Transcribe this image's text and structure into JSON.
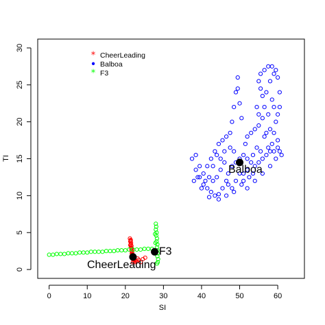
{
  "chart_data": {
    "type": "scatter",
    "xlabel": "SI",
    "ylabel": "TI",
    "xlim": [
      -3,
      67
    ],
    "ylim": [
      -1.2,
      31.2
    ],
    "x_ticks": [
      0,
      10,
      20,
      30,
      40,
      50,
      60
    ],
    "y_ticks": [
      0,
      5,
      10,
      15,
      20,
      25,
      30
    ],
    "grid": false,
    "legend_position": "top-left",
    "legend": [
      {
        "label": "CheerLeading",
        "color": "#FF0000",
        "symbol": "*"
      },
      {
        "label": "Balboa",
        "color": "#0000FF",
        "symbol": "•"
      },
      {
        "label": "F3",
        "color": "#00FF00",
        "symbol": "*"
      }
    ],
    "series": [
      {
        "name": "CheerLeading",
        "color": "#FF0000",
        "marker": "open-circle",
        "points": [
          [
            21.2,
            4.2
          ],
          [
            21.4,
            4.0
          ],
          [
            21.3,
            3.8
          ],
          [
            21.5,
            3.6
          ],
          [
            21.4,
            3.4
          ],
          [
            21.6,
            3.2
          ],
          [
            21.5,
            3.0
          ],
          [
            21.7,
            2.8
          ],
          [
            21.6,
            2.6
          ],
          [
            21.8,
            2.4
          ],
          [
            21.7,
            2.2
          ],
          [
            21.9,
            2.0
          ],
          [
            22.0,
            1.8
          ],
          [
            22.2,
            1.6
          ],
          [
            22.1,
            1.4
          ],
          [
            22.3,
            1.2
          ],
          [
            22.5,
            1.0
          ],
          [
            22.7,
            1.2
          ],
          [
            23.0,
            1.1
          ],
          [
            23.5,
            1.3
          ],
          [
            24.0,
            1.0
          ],
          [
            24.6,
            1.4
          ],
          [
            25.2,
            1.6
          ],
          [
            21.4,
            3.9
          ],
          [
            21.3,
            3.3
          ],
          [
            21.6,
            2.9
          ],
          [
            21.8,
            2.1
          ],
          [
            22.4,
            1.5
          ],
          [
            22.0,
            1.0
          ],
          [
            23.2,
            1.5
          ]
        ],
        "centroid": [
          22.0,
          1.7
        ]
      },
      {
        "name": "Balboa",
        "color": "#0000FF",
        "marker": "open-circle",
        "points": [
          [
            37.5,
            15.0
          ],
          [
            38.5,
            13.5
          ],
          [
            39.5,
            12.5
          ],
          [
            40.5,
            11.5
          ],
          [
            41.5,
            11.0
          ],
          [
            42.5,
            10.5
          ],
          [
            43.5,
            10.0
          ],
          [
            44.5,
            10.2
          ],
          [
            45.5,
            11.0
          ],
          [
            46.5,
            12.0
          ],
          [
            47.0,
            13.0
          ],
          [
            48.0,
            14.0
          ],
          [
            49.0,
            14.5
          ],
          [
            50.0,
            15.0
          ],
          [
            51.0,
            15.5
          ],
          [
            52.0,
            15.0
          ],
          [
            53.0,
            14.5
          ],
          [
            54.0,
            14.0
          ],
          [
            55.0,
            14.5
          ],
          [
            56.0,
            15.0
          ],
          [
            57.0,
            15.5
          ],
          [
            58.0,
            16.0
          ],
          [
            59.0,
            16.0
          ],
          [
            60.0,
            16.5
          ],
          [
            60.5,
            16.0
          ],
          [
            60.0,
            17.5
          ],
          [
            59.0,
            18.5
          ],
          [
            58.0,
            19.0
          ],
          [
            57.0,
            18.5
          ],
          [
            56.5,
            18.0
          ],
          [
            59.5,
            20.0
          ],
          [
            60.0,
            21.0
          ],
          [
            60.5,
            22.0
          ],
          [
            60.5,
            24.0
          ],
          [
            60.0,
            26.0
          ],
          [
            59.5,
            27.0
          ],
          [
            58.5,
            27.5
          ],
          [
            57.5,
            27.5
          ],
          [
            56.5,
            27.0
          ],
          [
            55.5,
            26.5
          ],
          [
            55.0,
            25.5
          ],
          [
            55.5,
            24.5
          ],
          [
            56.0,
            23.5
          ],
          [
            56.5,
            22.0
          ],
          [
            56.0,
            20.5
          ],
          [
            55.0,
            19.5
          ],
          [
            54.0,
            19.0
          ],
          [
            53.0,
            18.5
          ],
          [
            52.0,
            18.0
          ],
          [
            51.5,
            17.0
          ],
          [
            50.5,
            20.5
          ],
          [
            50.0,
            22.5
          ],
          [
            49.5,
            24.5
          ],
          [
            49.5,
            26.0
          ],
          [
            49.0,
            24.0
          ],
          [
            48.5,
            22.0
          ],
          [
            48.0,
            20.0
          ],
          [
            47.5,
            18.5
          ],
          [
            46.5,
            18.0
          ],
          [
            45.5,
            17.5
          ],
          [
            44.5,
            17.0
          ],
          [
            43.5,
            16.0
          ],
          [
            42.5,
            15.0
          ],
          [
            41.5,
            14.0
          ],
          [
            40.5,
            13.0
          ],
          [
            39.5,
            14.0
          ],
          [
            38.5,
            15.5
          ],
          [
            46.0,
            14.5
          ],
          [
            45.0,
            13.5
          ],
          [
            44.0,
            12.5
          ],
          [
            43.0,
            12.0
          ],
          [
            42.0,
            12.5
          ],
          [
            47.0,
            11.5
          ],
          [
            48.0,
            11.0
          ],
          [
            49.0,
            12.0
          ],
          [
            50.0,
            13.0
          ],
          [
            51.0,
            13.0
          ],
          [
            52.0,
            13.5
          ],
          [
            53.5,
            15.5
          ],
          [
            54.5,
            16.5
          ],
          [
            55.5,
            16.0
          ],
          [
            57.5,
            16.5
          ],
          [
            58.5,
            17.0
          ],
          [
            51.0,
            12.0
          ],
          [
            52.5,
            12.5
          ],
          [
            53.5,
            13.0
          ],
          [
            46.0,
            16.0
          ],
          [
            47.5,
            16.5
          ],
          [
            48.5,
            16.0
          ],
          [
            44.0,
            15.5
          ],
          [
            45.0,
            15.0
          ],
          [
            43.0,
            14.0
          ],
          [
            41.0,
            12.0
          ],
          [
            39.0,
            12.5
          ],
          [
            38.0,
            12.0
          ],
          [
            40.0,
            11.0
          ],
          [
            42.0,
            9.8
          ],
          [
            44.5,
            9.5
          ],
          [
            46.5,
            10.0
          ],
          [
            48.5,
            10.5
          ],
          [
            50.5,
            11.5
          ],
          [
            52.0,
            11.0
          ],
          [
            54.0,
            12.0
          ],
          [
            56.0,
            13.0
          ],
          [
            58.0,
            14.0
          ],
          [
            59.5,
            15.0
          ],
          [
            61.0,
            15.5
          ],
          [
            54.5,
            22.0
          ],
          [
            55.0,
            21.0
          ],
          [
            57.0,
            24.0
          ],
          [
            58.0,
            25.5
          ],
          [
            59.0,
            26.5
          ],
          [
            58.5,
            23.0
          ],
          [
            59.0,
            22.0
          ],
          [
            57.5,
            21.0
          ]
        ],
        "centroid": [
          50.0,
          14.5
        ]
      },
      {
        "name": "F3",
        "color": "#00FF00",
        "marker": "open-circle",
        "points": [
          [
            0.0,
            2.0
          ],
          [
            1.0,
            2.0
          ],
          [
            2.0,
            2.1
          ],
          [
            3.0,
            2.1
          ],
          [
            4.0,
            2.1
          ],
          [
            5.0,
            2.2
          ],
          [
            6.0,
            2.2
          ],
          [
            7.0,
            2.2
          ],
          [
            8.0,
            2.3
          ],
          [
            9.0,
            2.3
          ],
          [
            10.0,
            2.3
          ],
          [
            11.0,
            2.4
          ],
          [
            12.0,
            2.4
          ],
          [
            13.0,
            2.4
          ],
          [
            14.0,
            2.4
          ],
          [
            15.0,
            2.5
          ],
          [
            16.0,
            2.5
          ],
          [
            17.0,
            2.5
          ],
          [
            18.0,
            2.6
          ],
          [
            19.0,
            2.6
          ],
          [
            20.0,
            2.6
          ],
          [
            21.0,
            2.7
          ],
          [
            22.0,
            2.7
          ],
          [
            23.0,
            2.7
          ],
          [
            24.0,
            2.7
          ],
          [
            25.0,
            2.8
          ],
          [
            26.0,
            2.8
          ],
          [
            27.0,
            2.8
          ],
          [
            28.0,
            6.2
          ],
          [
            28.1,
            5.8
          ],
          [
            28.0,
            5.4
          ],
          [
            28.2,
            5.0
          ],
          [
            28.1,
            4.6
          ],
          [
            28.3,
            4.2
          ],
          [
            28.2,
            3.8
          ],
          [
            28.4,
            3.4
          ],
          [
            28.3,
            3.0
          ],
          [
            28.4,
            2.6
          ],
          [
            28.5,
            2.2
          ],
          [
            28.4,
            1.8
          ],
          [
            28.6,
            1.4
          ],
          [
            28.5,
            1.0
          ],
          [
            28.3,
            0.8
          ],
          [
            27.8,
            4.8
          ],
          [
            27.9,
            3.6
          ],
          [
            28.1,
            2.4
          ]
        ],
        "centroid": [
          27.7,
          2.4
        ]
      }
    ],
    "annotations": [
      {
        "text": "Balboa",
        "x": 51.5,
        "y": 13.5
      },
      {
        "text": "F3",
        "x": 30.5,
        "y": 2.4
      },
      {
        "text": "CheerLeading",
        "x": 19.0,
        "y": 0.6
      }
    ]
  }
}
